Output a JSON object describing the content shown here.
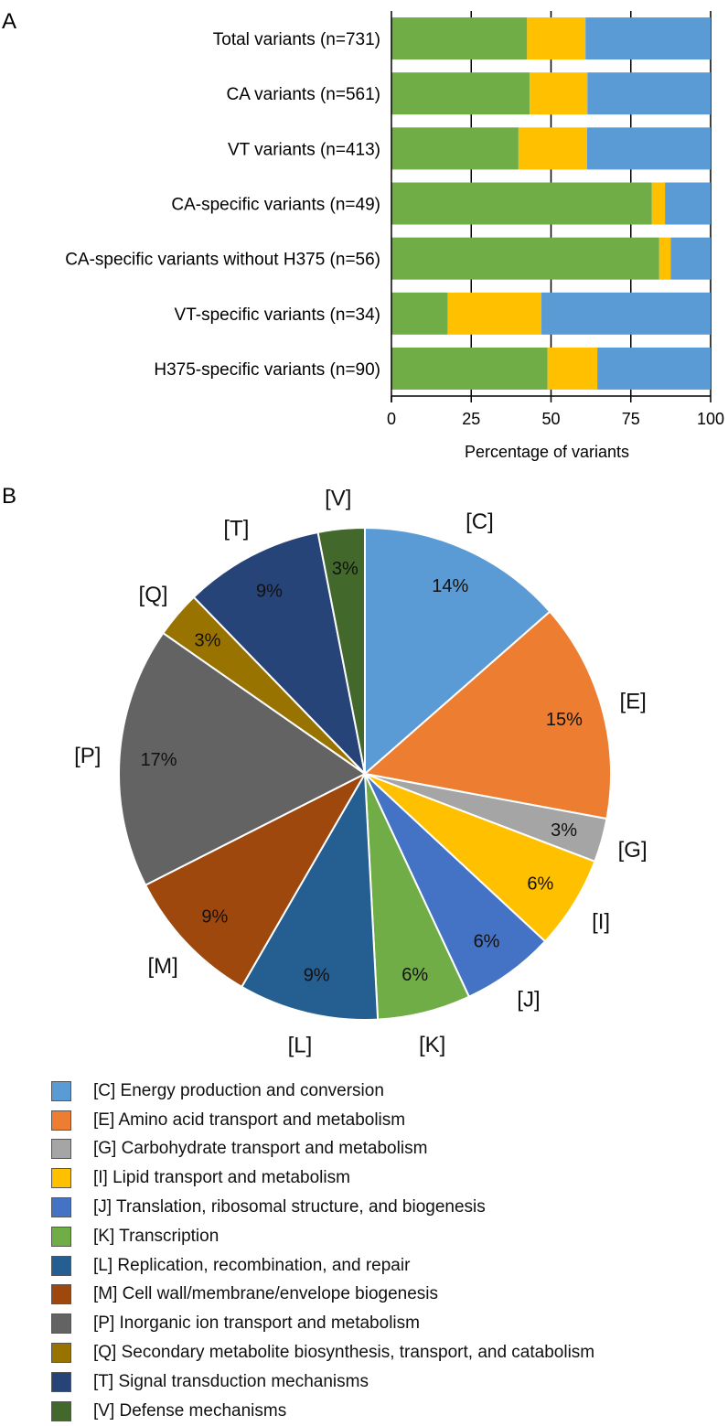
{
  "chart_data": [
    {
      "panel": "A",
      "type": "bar",
      "orientation": "horizontal",
      "stacked": true,
      "categories": [
        "Total variants (n=731)",
        "CA variants (n=561)",
        "VT variants (n=413)",
        "CA-specific variants (n=49)",
        "CA-specific variants without H375 (n=56)",
        "VT-specific variants (n=34)",
        "H375-specific variants (n=90)"
      ],
      "series": [
        {
          "name": "green",
          "color": "#70ad47",
          "values": [
            42.5,
            43.3,
            39.8,
            81.6,
            83.9,
            17.6,
            48.9
          ]
        },
        {
          "name": "yellow",
          "color": "#ffc000",
          "values": [
            18.3,
            18.1,
            21.5,
            4.1,
            3.6,
            29.4,
            15.6
          ]
        },
        {
          "name": "blue",
          "color": "#5b9bd5",
          "values": [
            39.2,
            38.6,
            38.7,
            14.3,
            12.5,
            53.0,
            35.5
          ]
        }
      ],
      "xlabel": "Percentage of variants",
      "xlim": [
        0,
        100
      ],
      "xticks": [
        "0",
        "25",
        "50",
        "75",
        "100"
      ],
      "grid": "vertical"
    },
    {
      "panel": "B",
      "type": "pie",
      "slices": [
        {
          "key": "[C]",
          "label": "14%",
          "value": 14.6,
          "color": "#5b9bd5",
          "legend": "[C] Energy production and conversion"
        },
        {
          "key": "[E]",
          "label": "15%",
          "value": 15.5,
          "color": "#ed7d31",
          "legend": "[E] Amino acid transport and metabolism"
        },
        {
          "key": "[G]",
          "label": "3%",
          "value": 3.1,
          "color": "#a5a5a5",
          "legend": "[G] Carbohydrate transport and metabolism"
        },
        {
          "key": "[I]",
          "label": "6%",
          "value": 6.6,
          "color": "#ffc000",
          "legend": "[I] Lipid transport and metabolism"
        },
        {
          "key": "[J]",
          "label": "6%",
          "value": 6.6,
          "color": "#4472c4",
          "legend": "[J] Translation, ribosomal structure, and biogenesis"
        },
        {
          "key": "[K]",
          "label": "6%",
          "value": 6.6,
          "color": "#70ad47",
          "legend": "[K] Transcription"
        },
        {
          "key": "[L]",
          "label": "9%",
          "value": 9.9,
          "color": "#255e91",
          "legend": "[L] Replication, recombination, and repair"
        },
        {
          "key": "[M]",
          "label": "9%",
          "value": 9.9,
          "color": "#9e480e",
          "legend": "[M] Cell wall/membrane/envelope biogenesis"
        },
        {
          "key": "[P]",
          "label": "17%",
          "value": 18.5,
          "color": "#636363",
          "legend": "[P] Inorganic ion transport and metabolism"
        },
        {
          "key": "[Q]",
          "label": "3%",
          "value": 3.3,
          "color": "#997300",
          "legend": "[Q] Secondary metabolite biosynthesis, transport, and catabolism"
        },
        {
          "key": "[T]",
          "label": "9%",
          "value": 9.9,
          "color": "#264478",
          "legend": "[T] Signal transduction mechanisms"
        },
        {
          "key": "[V]",
          "label": "3%",
          "value": 3.3,
          "color": "#43682b",
          "legend": "[V] Defense mechanisms"
        }
      ]
    }
  ],
  "labels": {
    "panel_a": "A",
    "panel_b": "B"
  }
}
